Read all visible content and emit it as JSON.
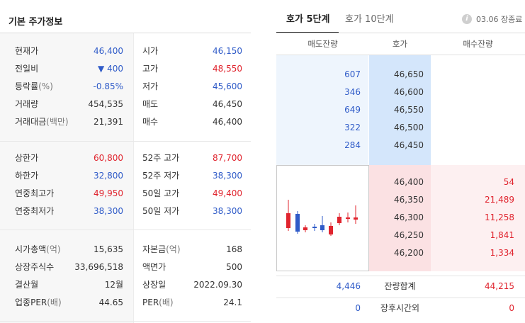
{
  "stock_info": {
    "title": "기본 주가정보",
    "sections": [
      {
        "rows": [
          {
            "label1": "현재가",
            "value1": "46,400",
            "dir1": "down",
            "label2": "시가",
            "value2": "46,150",
            "dir2": "down"
          },
          {
            "label1": "전일비",
            "value1": "▼ 400",
            "dir1": "down",
            "label2": "고가",
            "value2": "48,550",
            "dir2": "up"
          },
          {
            "label1": "등락률",
            "unit1": "(%)",
            "value1": "-0.85%",
            "dir1": "down",
            "label2": "저가",
            "value2": "45,600",
            "dir2": "down"
          },
          {
            "label1": "거래량",
            "value1": "454,535",
            "dir1": "",
            "label2": "매도",
            "value2": "46,450",
            "dir2": ""
          },
          {
            "label1": "거래대금",
            "unit1": "(백만)",
            "value1": "21,391",
            "dir1": "",
            "label2": "매수",
            "value2": "46,400",
            "dir2": ""
          }
        ]
      },
      {
        "rows": [
          {
            "label1": "상한가",
            "value1": "60,800",
            "dir1": "up",
            "label2": "52주 고가",
            "value2": "87,700",
            "dir2": "up"
          },
          {
            "label1": "하한가",
            "value1": "32,800",
            "dir1": "down",
            "label2": "52주 저가",
            "value2": "38,300",
            "dir2": "down"
          },
          {
            "label1": "연중최고가",
            "value1": "49,950",
            "dir1": "up",
            "label2": "50일 고가",
            "value2": "49,400",
            "dir2": "up"
          },
          {
            "label1": "연중최저가",
            "value1": "38,300",
            "dir1": "down",
            "label2": "50일 저가",
            "value2": "38,300",
            "dir2": "down"
          }
        ]
      },
      {
        "rows": [
          {
            "label1": "시가총액",
            "unit1": "(억)",
            "value1": "15,635",
            "dir1": "",
            "label2": "자본금",
            "unit2": "(억)",
            "value2": "168",
            "dir2": ""
          },
          {
            "label1": "상장주식수",
            "value1": "33,696,518",
            "dir1": "",
            "label2": "액면가",
            "value2": "500",
            "dir2": ""
          },
          {
            "label1": "결산월",
            "value1": "12월",
            "dir1": "",
            "label2": "상장일",
            "value2": "2022.09.30",
            "dir2": ""
          },
          {
            "label1": "업종PER",
            "unit1": "(배)",
            "value1": "44.65",
            "dir1": "",
            "label2": "PER",
            "unit2": "(배)",
            "value2": "24.1",
            "dir2": ""
          }
        ]
      }
    ]
  },
  "orderbook": {
    "tabs": [
      {
        "label": "호가 5단계",
        "active": true
      },
      {
        "label": "호가 10단계",
        "active": false
      }
    ],
    "info_icon": "info-icon",
    "status": "03.06 장종료",
    "headers": {
      "ask_volume": "매도잔량",
      "price": "호가",
      "bid_volume": "매수잔량"
    },
    "asks": [
      {
        "volume": "607",
        "price": "46,650"
      },
      {
        "volume": "346",
        "price": "46,600"
      },
      {
        "volume": "649",
        "price": "46,550"
      },
      {
        "volume": "322",
        "price": "46,500"
      },
      {
        "volume": "284",
        "price": "46,450"
      }
    ],
    "bids": [
      {
        "price": "46,400",
        "volume": "54"
      },
      {
        "price": "46,350",
        "volume": "21,489"
      },
      {
        "price": "46,300",
        "volume": "11,258"
      },
      {
        "price": "46,250",
        "volume": "1,841"
      },
      {
        "price": "46,200",
        "volume": "1,334"
      }
    ],
    "total": {
      "ask": "4,446",
      "label": "잔량합계",
      "bid": "44,215"
    },
    "after_hours": {
      "ask": "0",
      "label": "장후시간외",
      "bid": "0"
    },
    "colors": {
      "up": "#e0242e",
      "down": "#2f5bc8"
    }
  }
}
